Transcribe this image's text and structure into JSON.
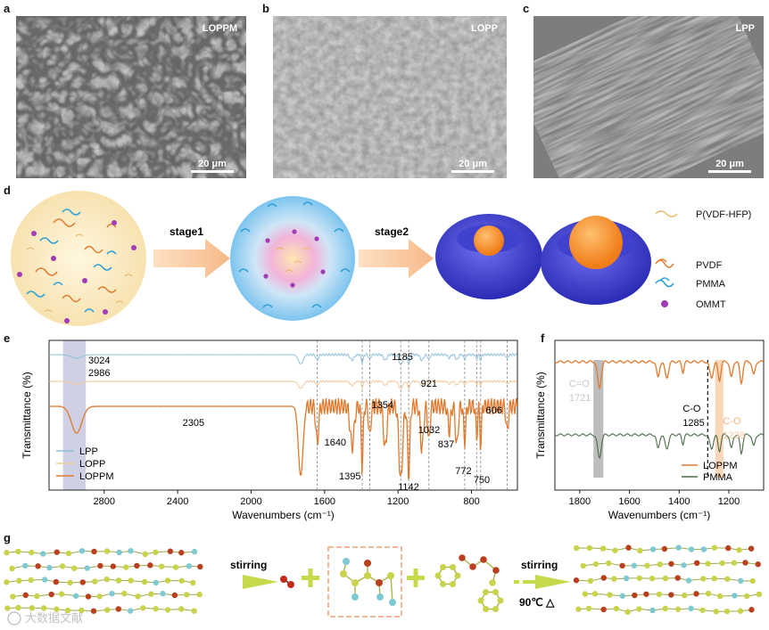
{
  "panels": {
    "a": {
      "label": "a",
      "tag": "LOPPM",
      "scale": "20 μm"
    },
    "b": {
      "label": "b",
      "tag": "LOPP",
      "scale": "20 μm"
    },
    "c": {
      "label": "c",
      "tag": "LPP",
      "scale": "20 μm"
    },
    "d": {
      "label": "d",
      "stage1": "stage1",
      "stage2": "stage2",
      "legend": [
        {
          "name": "P(VDF-HFP)",
          "color": "#e8b56a"
        },
        {
          "name": "PVDF",
          "color": "#e07a2f"
        },
        {
          "name": "PMMA",
          "color": "#2a9fd6"
        },
        {
          "name": "OMMT",
          "color": "#b04ab8"
        }
      ]
    },
    "e": {
      "label": "e"
    },
    "f": {
      "label": "f"
    },
    "g": {
      "label": "g",
      "stirring_left": "stirring",
      "stirring_right": "stirring",
      "temp": "90℃ △",
      "watermark": "大数据文献"
    }
  },
  "chart_data": [
    {
      "type": "line",
      "panel": "e",
      "xlabel": "Wavenumbers (cm⁻¹)",
      "ylabel": "Transmittance (%)",
      "xlim": [
        3100,
        550
      ],
      "xticks": [
        2800,
        2400,
        2000,
        1600,
        1200,
        800
      ],
      "legend_position": "bottom-left",
      "series": [
        {
          "name": "LPP",
          "color": "#8fc1dd"
        },
        {
          "name": "LOPP",
          "color": "#f3c89a"
        },
        {
          "name": "LOPPM",
          "color": "#e07a2f"
        }
      ],
      "annotations": [
        "3024",
        "2986",
        "2305",
        "1640",
        "1395",
        "1354",
        "1185",
        "1142",
        "1032",
        "921",
        "837",
        "772",
        "750",
        "606"
      ],
      "dashed_lines_x": [
        1640,
        1395,
        1354,
        1185,
        1142,
        1032,
        837,
        772,
        750,
        606
      ],
      "highlight_band": [
        3024,
        2900
      ]
    },
    {
      "type": "line",
      "panel": "f",
      "xlabel": "Wavenumbers (cm⁻¹)",
      "ylabel": "Transmittance (%)",
      "xlim": [
        1900,
        1060
      ],
      "xticks": [
        1800,
        1600,
        1400,
        1200
      ],
      "legend_position": "bottom-right",
      "series": [
        {
          "name": "LOPPM",
          "color": "#e07a2f"
        },
        {
          "name": "PMMA",
          "color": "#4a6b48"
        }
      ],
      "annotations": [
        {
          "text": "C=O",
          "sub": "1721"
        },
        {
          "text": "C-O",
          "sub": "1285"
        },
        {
          "text": "C-O",
          "sub": "1238"
        }
      ],
      "dashed_lines_x": [
        1285
      ],
      "highlight_bands": [
        {
          "range": [
            1745,
            1705
          ],
          "color": "#bdbdbd"
        },
        {
          "range": [
            1255,
            1222
          ],
          "color": "#f9d7b8"
        }
      ]
    }
  ]
}
